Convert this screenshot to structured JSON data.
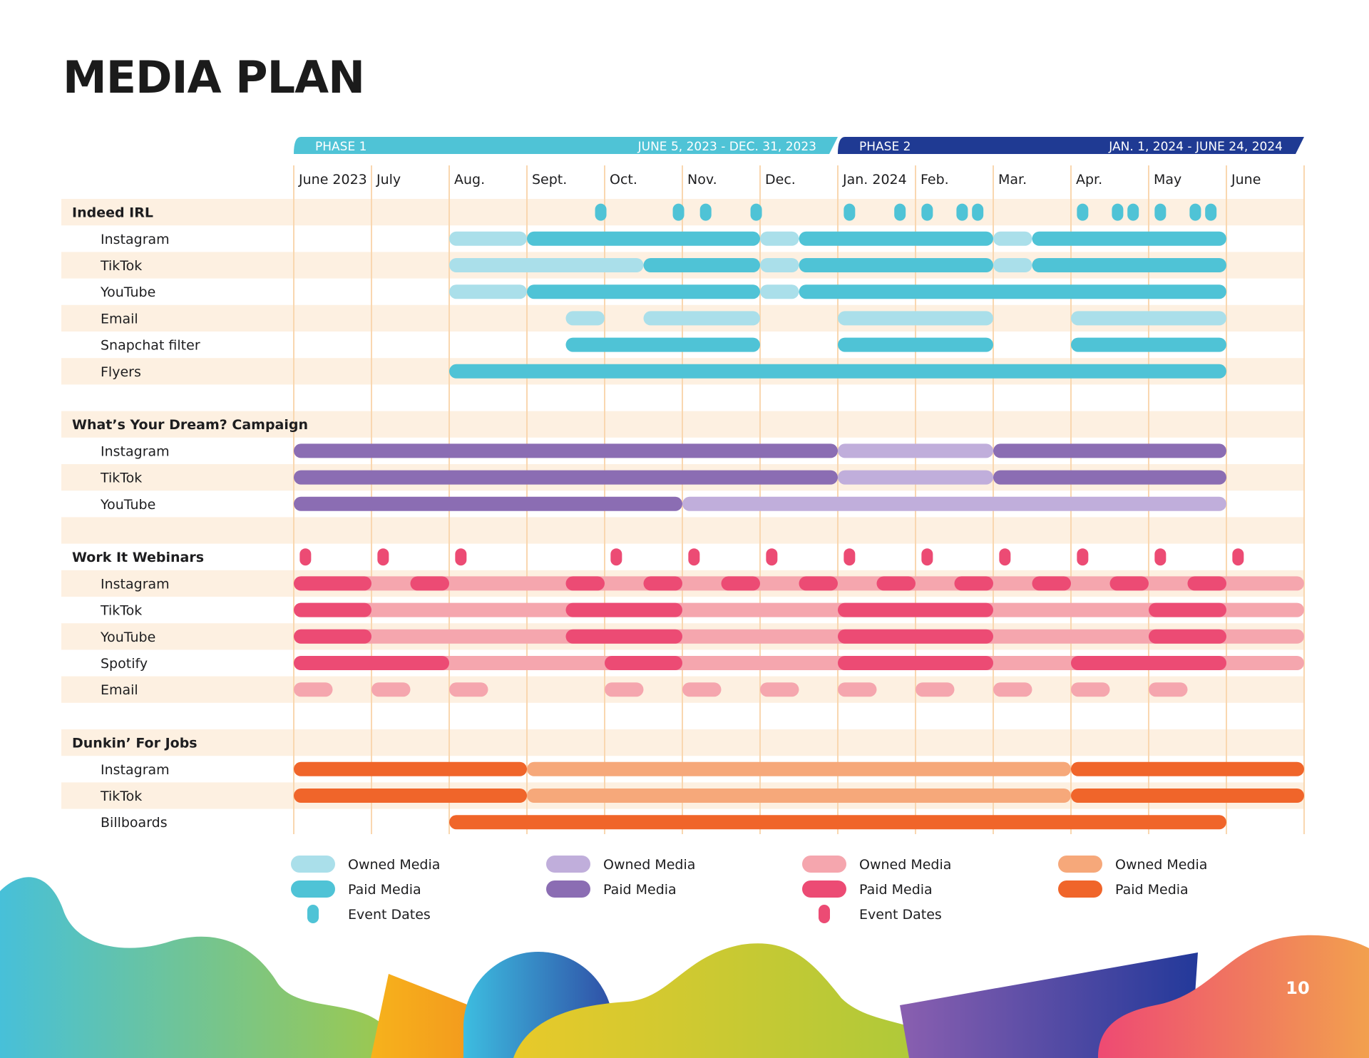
{
  "page": {
    "title": "MEDIA PLAN",
    "page_number": "10"
  },
  "colors": {
    "row_band": "#fdf0e1",
    "grid": "#f9d7b0",
    "blue_owned": "#aadfea",
    "blue_paid": "#4fc3d6",
    "purple_owned": "#c0aedb",
    "purple_paid": "#8b6db3",
    "pink_owned": "#f5a6ae",
    "pink_paid": "#ec4b74",
    "orange_owned": "#f6a87a",
    "orange_paid": "#f0652a",
    "phase1": "#4fc3d6",
    "phase2": "#1f3a93"
  },
  "chart_data": {
    "type": "gantt",
    "months": [
      "June 2023",
      "July",
      "Aug.",
      "Sept.",
      "Oct.",
      "Nov.",
      "Dec.",
      "Jan. 2024",
      "Feb.",
      "Mar.",
      "Apr.",
      "May",
      "June"
    ],
    "phases": [
      {
        "label": "PHASE 1",
        "dates": "JUNE 5, 2023 - DEC. 31, 2023",
        "start": 0,
        "end": 7,
        "color": "phase1"
      },
      {
        "label": "PHASE 2",
        "dates": "JAN. 1, 2024 - JUNE 24, 2024",
        "start": 7,
        "end": 13,
        "color": "phase2"
      }
    ],
    "rows": [
      {
        "label": "Indeed IRL",
        "group": true,
        "band": true,
        "bars": [],
        "events": [
          3.95,
          4.95,
          5.3,
          5.95,
          7.15,
          7.8,
          8.15,
          8.6,
          8.8,
          10.15,
          10.6,
          10.8,
          11.15,
          11.6,
          11.8
        ],
        "event_color": "blue_paid"
      },
      {
        "label": "Instagram",
        "band": false,
        "bars": [
          [
            2,
            3,
            "blue_owned"
          ],
          [
            3,
            6,
            "blue_paid"
          ],
          [
            6,
            6.5,
            "blue_owned"
          ],
          [
            6.5,
            9,
            "blue_paid"
          ],
          [
            9,
            9.5,
            "blue_owned"
          ],
          [
            9.5,
            12,
            "blue_paid"
          ]
        ]
      },
      {
        "label": "TikTok",
        "band": true,
        "bars": [
          [
            2,
            4.5,
            "blue_owned"
          ],
          [
            4.5,
            6,
            "blue_paid"
          ],
          [
            6,
            6.5,
            "blue_owned"
          ],
          [
            6.5,
            9,
            "blue_paid"
          ],
          [
            9,
            9.5,
            "blue_owned"
          ],
          [
            9.5,
            12,
            "blue_paid"
          ]
        ]
      },
      {
        "label": "YouTube",
        "band": false,
        "bars": [
          [
            2,
            3,
            "blue_owned"
          ],
          [
            3,
            6,
            "blue_paid"
          ],
          [
            6,
            6.5,
            "blue_owned"
          ],
          [
            6.5,
            12,
            "blue_paid"
          ]
        ]
      },
      {
        "label": "Email",
        "band": true,
        "bars": [
          [
            3.5,
            4,
            "blue_owned"
          ],
          [
            4.5,
            6,
            "blue_owned"
          ],
          [
            7,
            9,
            "blue_owned"
          ],
          [
            10,
            12,
            "blue_owned"
          ]
        ]
      },
      {
        "label": "Snapchat filter",
        "band": false,
        "bars": [
          [
            3.5,
            6,
            "blue_paid"
          ],
          [
            7,
            9,
            "blue_paid"
          ],
          [
            10,
            12,
            "blue_paid"
          ]
        ]
      },
      {
        "label": "Flyers",
        "band": true,
        "bars": [
          [
            2,
            12,
            "blue_paid"
          ]
        ]
      },
      {
        "label": "",
        "band": false,
        "bars": []
      },
      {
        "label": "What’s Your Dream? Campaign",
        "group": true,
        "band": true,
        "bars": []
      },
      {
        "label": "Instagram",
        "band": false,
        "bars": [
          [
            0,
            7,
            "purple_paid"
          ],
          [
            7,
            9,
            "purple_owned"
          ],
          [
            9,
            12,
            "purple_paid"
          ]
        ]
      },
      {
        "label": "TikTok",
        "band": true,
        "bars": [
          [
            0,
            7,
            "purple_paid"
          ],
          [
            7,
            9,
            "purple_owned"
          ],
          [
            9,
            12,
            "purple_paid"
          ]
        ]
      },
      {
        "label": "YouTube",
        "band": false,
        "bars": [
          [
            0,
            5,
            "purple_paid"
          ],
          [
            5,
            12,
            "purple_owned"
          ]
        ]
      },
      {
        "label": "",
        "band": true,
        "bars": []
      },
      {
        "label": "Work It Webinars",
        "group": true,
        "band": false,
        "bars": [],
        "events": [
          0.15,
          1.15,
          2.15,
          4.15,
          5.15,
          6.15,
          7.15,
          8.15,
          9.15,
          10.15,
          11.15,
          12.15
        ],
        "event_color": "pink_paid"
      },
      {
        "label": "Instagram",
        "band": true,
        "bars": [
          [
            0,
            13,
            "pink_owned"
          ],
          [
            0,
            1,
            "pink_paid"
          ],
          [
            1.5,
            2,
            "pink_paid"
          ],
          [
            3.5,
            4,
            "pink_paid"
          ],
          [
            4.5,
            5,
            "pink_paid"
          ],
          [
            5.5,
            6,
            "pink_paid"
          ],
          [
            6.5,
            7,
            "pink_paid"
          ],
          [
            7.5,
            8,
            "pink_paid"
          ],
          [
            8.5,
            9,
            "pink_paid"
          ],
          [
            9.5,
            10,
            "pink_paid"
          ],
          [
            10.5,
            11,
            "pink_paid"
          ],
          [
            11.5,
            12,
            "pink_paid"
          ]
        ]
      },
      {
        "label": "TikTok",
        "band": false,
        "bars": [
          [
            0,
            13,
            "pink_owned"
          ],
          [
            0,
            1,
            "pink_paid"
          ],
          [
            3.5,
            5,
            "pink_paid"
          ],
          [
            7,
            9,
            "pink_paid"
          ],
          [
            11,
            12,
            "pink_paid"
          ]
        ]
      },
      {
        "label": "YouTube",
        "band": true,
        "bars": [
          [
            0,
            13,
            "pink_owned"
          ],
          [
            0,
            1,
            "pink_paid"
          ],
          [
            3.5,
            5,
            "pink_paid"
          ],
          [
            7,
            9,
            "pink_paid"
          ],
          [
            11,
            12,
            "pink_paid"
          ]
        ]
      },
      {
        "label": "Spotify",
        "band": false,
        "bars": [
          [
            0,
            13,
            "pink_owned"
          ],
          [
            0,
            2,
            "pink_paid"
          ],
          [
            4,
            5,
            "pink_paid"
          ],
          [
            7,
            9,
            "pink_paid"
          ],
          [
            10,
            12,
            "pink_paid"
          ]
        ]
      },
      {
        "label": "Email",
        "band": true,
        "bars": [
          [
            0,
            0.5,
            "pink_owned"
          ],
          [
            1,
            1.5,
            "pink_owned"
          ],
          [
            2,
            2.5,
            "pink_owned"
          ],
          [
            4,
            4.5,
            "pink_owned"
          ],
          [
            5,
            5.5,
            "pink_owned"
          ],
          [
            6,
            6.5,
            "pink_owned"
          ],
          [
            7,
            7.5,
            "pink_owned"
          ],
          [
            8,
            8.5,
            "pink_owned"
          ],
          [
            9,
            9.5,
            "pink_owned"
          ],
          [
            10,
            10.5,
            "pink_owned"
          ],
          [
            11,
            11.5,
            "pink_owned"
          ]
        ]
      },
      {
        "label": "",
        "band": false,
        "bars": []
      },
      {
        "label": "Dunkin’ For Jobs",
        "group": true,
        "band": true,
        "bars": []
      },
      {
        "label": "Instagram",
        "band": false,
        "bars": [
          [
            0,
            3,
            "orange_paid"
          ],
          [
            3,
            10,
            "orange_owned"
          ],
          [
            10,
            13,
            "orange_paid"
          ]
        ]
      },
      {
        "label": "TikTok",
        "band": true,
        "bars": [
          [
            0,
            3,
            "orange_paid"
          ],
          [
            3,
            10,
            "orange_owned"
          ],
          [
            10,
            13,
            "orange_paid"
          ]
        ]
      },
      {
        "label": "Billboards",
        "band": false,
        "bars": [
          [
            2,
            12,
            "orange_paid"
          ]
        ]
      }
    ],
    "legend": [
      {
        "items": [
          [
            "Owned Media",
            "blue_owned",
            "bar"
          ],
          [
            "Paid Media",
            "blue_paid",
            "bar"
          ],
          [
            "Event Dates",
            "blue_paid",
            "dot"
          ]
        ]
      },
      {
        "items": [
          [
            "Owned Media",
            "purple_owned",
            "bar"
          ],
          [
            "Paid Media",
            "purple_paid",
            "bar"
          ]
        ]
      },
      {
        "items": [
          [
            "Owned Media",
            "pink_owned",
            "bar"
          ],
          [
            "Paid Media",
            "pink_paid",
            "bar"
          ],
          [
            "Event Dates",
            "pink_paid",
            "dot"
          ]
        ]
      },
      {
        "items": [
          [
            "Owned Media",
            "orange_owned",
            "bar"
          ],
          [
            "Paid Media",
            "orange_paid",
            "bar"
          ]
        ]
      }
    ]
  }
}
